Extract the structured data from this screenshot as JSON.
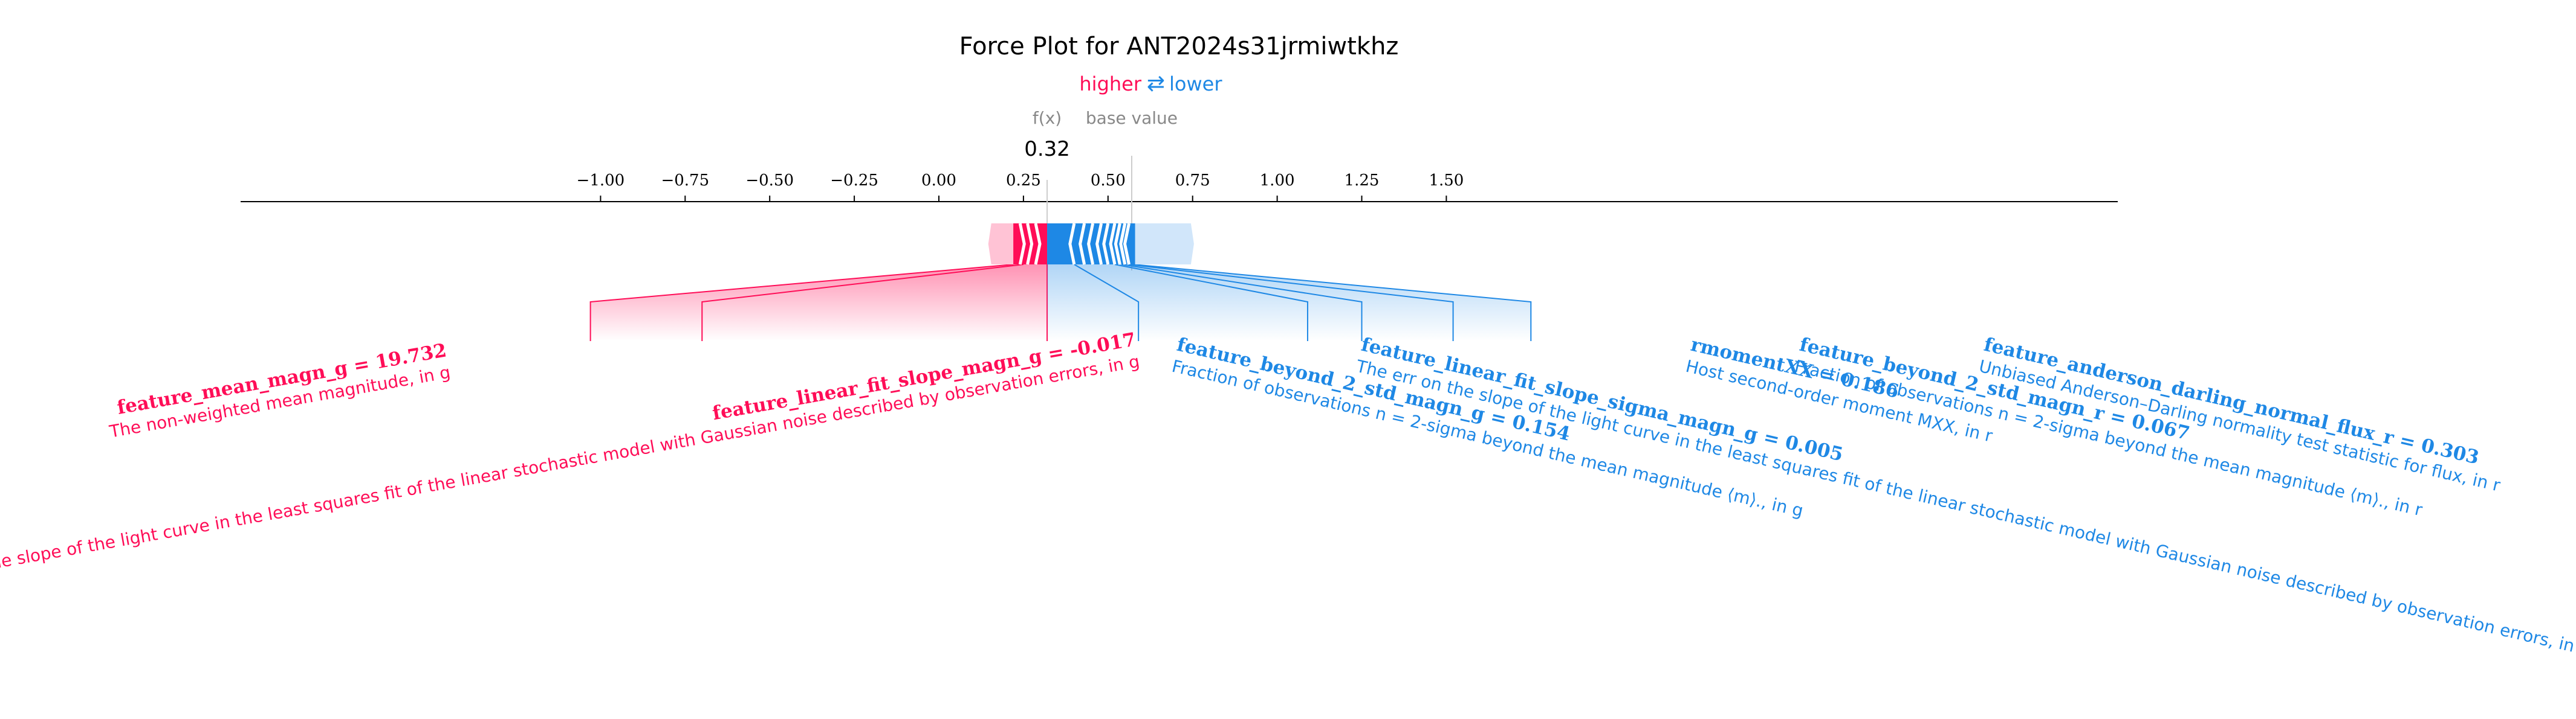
{
  "chart_data": {
    "type": "force",
    "title": "Force Plot for ANT2024s31jrmiwtkhz",
    "legend": {
      "higher": "higher",
      "lower": "lower",
      "arrow": "⇄"
    },
    "fx_label": "f(x)",
    "fx_value_text": "0.32",
    "fx_value": 0.32,
    "base_value_label": "base value",
    "base_value": 0.57,
    "xlim": [
      -1.03,
      1.75
    ],
    "ticks": [
      -1.0,
      -0.75,
      -0.5,
      -0.25,
      0.0,
      0.25,
      0.5,
      0.75,
      1.0,
      1.25,
      1.5
    ],
    "tick_labels": [
      "−1.00",
      "−0.75",
      "−0.50",
      "−0.25",
      "0.00",
      "0.25",
      "0.50",
      "0.75",
      "1.00",
      "1.25",
      "1.50"
    ],
    "colors": {
      "positive": "#ff0d57",
      "negative": "#1e88e5",
      "positive_light": "#ffc3d5",
      "negative_light": "#d1e6fa",
      "axis": "#000000",
      "muted": "#888888"
    },
    "positive_features": [
      {
        "name": "feature_mean_magn_g",
        "value": "19.732",
        "description": "The non-weighted mean magnitude, in g",
        "bar_start": 0.22,
        "anchor_x": -1.03
      },
      {
        "name": "feature_linear_fit_slope_magn_g",
        "value": "-0.017",
        "description": "The slope of the light curve in the least squares fit of the linear stochastic model with Gaussian noise described by observation errors, in g",
        "bar_start": 0.32,
        "anchor_x": 0.32
      }
    ],
    "negative_features": [
      {
        "name": "feature_beyond_2_std_magn_g",
        "value": "0.154",
        "description": "Fraction of observations n = 2-sigma beyond the mean magnitude ⟨m⟩., in g",
        "anchor_x": 0.32
      },
      {
        "name": "feature_linear_fit_slope_sigma_magn_g",
        "value": "0.005",
        "description": "The err on the slope of the light curve in the least squares fit of the linear stochastic model with Gaussian noise described by observation errors, in g",
        "anchor_x": 0.59
      },
      {
        "name": "rmomentXX",
        "value": "0.186",
        "description": "Host second-order moment MXX, in r",
        "anchor_x": 1.09
      },
      {
        "name": "feature_beyond_2_std_magn_r",
        "value": "0.067",
        "description": "Fraction of observations n = 2-sigma beyond the mean magnitude ⟨m⟩., in r",
        "anchor_x": 1.25
      },
      {
        "name": "feature_anderson_darling_normal_flux_r",
        "value": "0.303",
        "description": "Unbiased Anderson–Darling normality test statistic for flux, in r",
        "anchor_x": 1.52
      }
    ]
  }
}
